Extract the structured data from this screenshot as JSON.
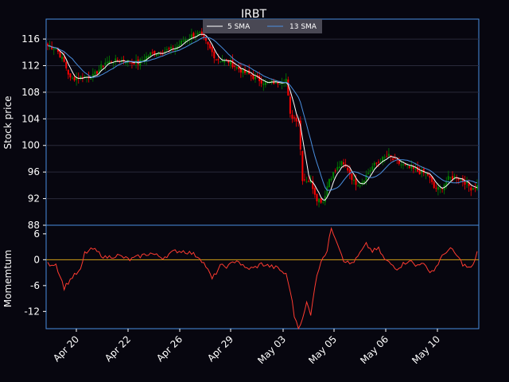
{
  "chart_data": [
    {
      "type": "candlestick",
      "title": "IRBT",
      "ylabel": "Stock price",
      "ylim": [
        88,
        119
      ],
      "yticks": [
        88,
        92,
        96,
        100,
        104,
        108,
        112,
        116
      ],
      "xticks": [
        "Apr 20",
        "Apr 22",
        "Apr 26",
        "Apr 29",
        "May 03",
        "May 05",
        "May 06",
        "May 10"
      ],
      "grid": true,
      "legend": "top-center",
      "series": [
        {
          "name": "5 SMA",
          "color": "#ffffff"
        },
        {
          "name": "13 SMA",
          "color": "#4a8fe0"
        }
      ],
      "price_keyframes": [
        [
          0,
          115
        ],
        [
          4,
          114.6
        ],
        [
          8,
          112.5
        ],
        [
          11,
          110
        ],
        [
          16,
          110.3
        ],
        [
          22,
          110.4
        ],
        [
          28,
          112.5
        ],
        [
          36,
          112.8
        ],
        [
          44,
          112.4
        ],
        [
          50,
          113.8
        ],
        [
          56,
          114.2
        ],
        [
          62,
          114.6
        ],
        [
          66,
          115.8
        ],
        [
          70,
          116.5
        ],
        [
          74,
          116.8
        ],
        [
          78,
          115
        ],
        [
          82,
          113
        ],
        [
          88,
          112.6
        ],
        [
          94,
          111.3
        ],
        [
          100,
          110.3
        ],
        [
          106,
          109.4
        ],
        [
          112,
          109.5
        ],
        [
          116,
          110
        ],
        [
          118,
          104.5
        ],
        [
          122,
          103.8
        ],
        [
          124,
          95
        ],
        [
          128,
          94.6
        ],
        [
          131,
          92
        ],
        [
          134,
          91.6
        ],
        [
          137,
          95
        ],
        [
          140,
          96.2
        ],
        [
          143,
          97.3
        ],
        [
          146,
          96.4
        ],
        [
          149,
          94.5
        ],
        [
          152,
          94.2
        ],
        [
          155,
          95.5
        ],
        [
          158,
          96.8
        ],
        [
          162,
          97.8
        ],
        [
          166,
          98.4
        ],
        [
          169,
          97.6
        ],
        [
          173,
          97
        ],
        [
          177,
          96.5
        ],
        [
          181,
          96
        ],
        [
          185,
          95.6
        ],
        [
          188,
          93.6
        ],
        [
          191,
          93.4
        ],
        [
          195,
          95
        ],
        [
          199,
          95.3
        ],
        [
          203,
          94.5
        ],
        [
          206,
          93.6
        ],
        [
          209,
          93.9
        ]
      ],
      "bar_count": 210,
      "up_color": "#008000",
      "down_color": "#ff0000"
    },
    {
      "type": "line",
      "ylabel": "Momemtum",
      "ylim": [
        -16,
        8
      ],
      "yticks": [
        6,
        0,
        -6,
        -12
      ],
      "zero_line_color": "#d4a017",
      "series": [
        {
          "color": "#ff3b30"
        }
      ],
      "keyframes": [
        [
          0,
          -1
        ],
        [
          4,
          -1
        ],
        [
          8,
          -6.5
        ],
        [
          12,
          -4
        ],
        [
          16,
          -2.5
        ],
        [
          18,
          1.5
        ],
        [
          22,
          2.5
        ],
        [
          28,
          0.5
        ],
        [
          34,
          1
        ],
        [
          40,
          0
        ],
        [
          46,
          1
        ],
        [
          50,
          1.5
        ],
        [
          56,
          0.5
        ],
        [
          62,
          2
        ],
        [
          66,
          2
        ],
        [
          70,
          1.5
        ],
        [
          74,
          0.5
        ],
        [
          77,
          -1.5
        ],
        [
          80,
          -4.5
        ],
        [
          84,
          -1.5
        ],
        [
          88,
          -1.5
        ],
        [
          92,
          0
        ],
        [
          96,
          -2
        ],
        [
          100,
          -2
        ],
        [
          104,
          -1
        ],
        [
          108,
          -1.5
        ],
        [
          112,
          -2
        ],
        [
          116,
          -3.5
        ],
        [
          118,
          -7
        ],
        [
          120,
          -13
        ],
        [
          122,
          -15.5
        ],
        [
          124,
          -14
        ],
        [
          126,
          -10
        ],
        [
          128,
          -12.5
        ],
        [
          130,
          -6
        ],
        [
          133,
          0
        ],
        [
          136,
          2
        ],
        [
          138,
          7.5
        ],
        [
          141,
          4
        ],
        [
          144,
          0
        ],
        [
          147,
          -1
        ],
        [
          150,
          0
        ],
        [
          152,
          1.5
        ],
        [
          155,
          3.5
        ],
        [
          158,
          2
        ],
        [
          161,
          2.5
        ],
        [
          164,
          0
        ],
        [
          167,
          -1
        ],
        [
          170,
          -2
        ],
        [
          173,
          -1
        ],
        [
          176,
          0
        ],
        [
          179,
          -1.5
        ],
        [
          182,
          -0.5
        ],
        [
          185,
          -2.5
        ],
        [
          188,
          -2.5
        ],
        [
          191,
          0
        ],
        [
          194,
          2
        ],
        [
          196,
          2.5
        ],
        [
          199,
          1
        ],
        [
          202,
          -1
        ],
        [
          205,
          -2
        ],
        [
          207,
          -1.5
        ],
        [
          209,
          2
        ]
      ]
    }
  ]
}
